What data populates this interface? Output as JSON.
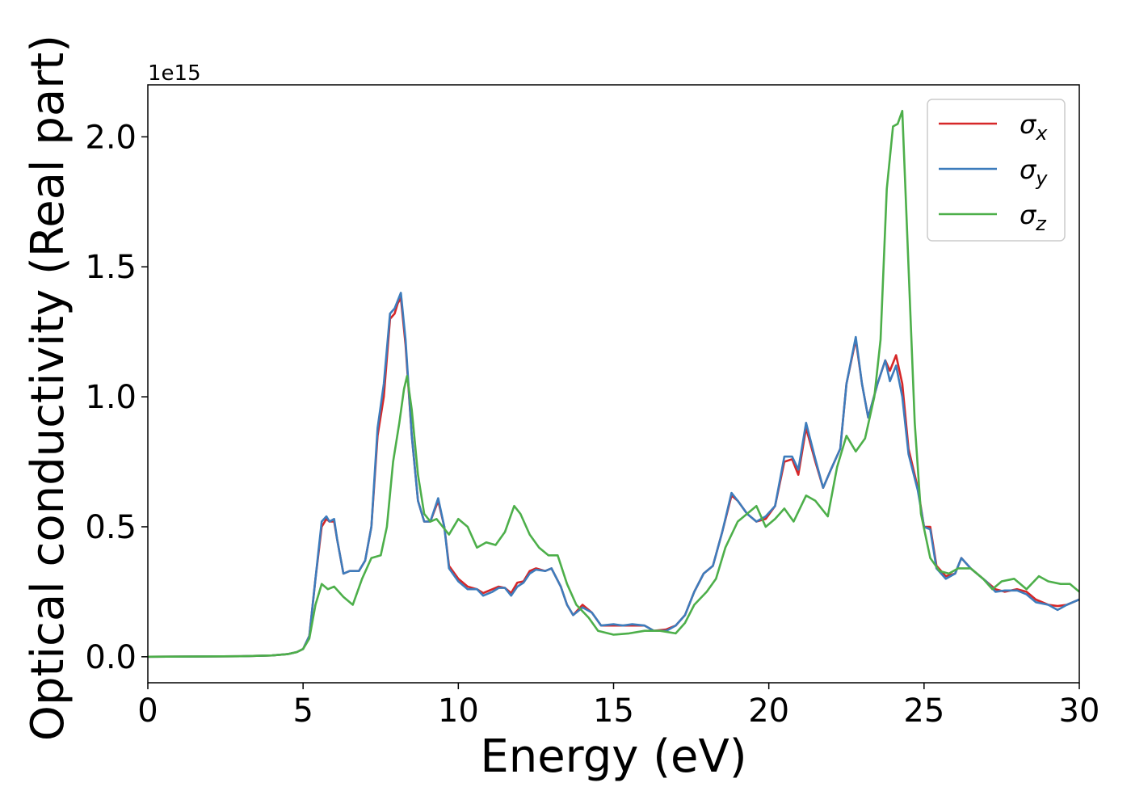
{
  "chart_data": {
    "type": "line",
    "title": "",
    "xlabel": "Energy (eV)",
    "ylabel": "Optical conductivity (Real part)",
    "y_offset_label": "1e15",
    "xlim": [
      0,
      30
    ],
    "ylim": [
      -0.1,
      2.2
    ],
    "x_ticks": [
      0,
      5,
      10,
      15,
      20,
      25,
      30
    ],
    "x_tick_labels": [
      "0",
      "5",
      "10",
      "15",
      "20",
      "25",
      "30"
    ],
    "y_ticks": [
      0.0,
      0.5,
      1.0,
      1.5,
      2.0
    ],
    "y_tick_labels": [
      "0.0",
      "0.5",
      "1.0",
      "1.5",
      "2.0"
    ],
    "grid": false,
    "legend_position": "top-right",
    "series": [
      {
        "name": "σx",
        "name_base": "σ",
        "name_sub": "x",
        "color": "#d62728",
        "points": [
          [
            0,
            0
          ],
          [
            3,
            0.002
          ],
          [
            4,
            0.005
          ],
          [
            4.5,
            0.01
          ],
          [
            4.8,
            0.018
          ],
          [
            5,
            0.03
          ],
          [
            5.2,
            0.08
          ],
          [
            5.4,
            0.3
          ],
          [
            5.6,
            0.5
          ],
          [
            5.75,
            0.53
          ],
          [
            5.85,
            0.52
          ],
          [
            6,
            0.52
          ],
          [
            6.1,
            0.45
          ],
          [
            6.3,
            0.32
          ],
          [
            6.5,
            0.33
          ],
          [
            6.8,
            0.33
          ],
          [
            7,
            0.37
          ],
          [
            7.2,
            0.5
          ],
          [
            7.4,
            0.85
          ],
          [
            7.6,
            1.0
          ],
          [
            7.8,
            1.3
          ],
          [
            7.95,
            1.32
          ],
          [
            8.05,
            1.36
          ],
          [
            8.15,
            1.38
          ],
          [
            8.3,
            1.2
          ],
          [
            8.5,
            0.85
          ],
          [
            8.7,
            0.6
          ],
          [
            8.9,
            0.52
          ],
          [
            9.1,
            0.52
          ],
          [
            9.35,
            0.6
          ],
          [
            9.55,
            0.5
          ],
          [
            9.7,
            0.35
          ],
          [
            10,
            0.3
          ],
          [
            10.3,
            0.27
          ],
          [
            10.6,
            0.26
          ],
          [
            10.8,
            0.245
          ],
          [
            11.1,
            0.26
          ],
          [
            11.3,
            0.27
          ],
          [
            11.5,
            0.265
          ],
          [
            11.7,
            0.245
          ],
          [
            11.9,
            0.285
          ],
          [
            12.1,
            0.29
          ],
          [
            12.3,
            0.33
          ],
          [
            12.5,
            0.34
          ],
          [
            12.8,
            0.33
          ],
          [
            13,
            0.34
          ],
          [
            13.3,
            0.27
          ],
          [
            13.5,
            0.2
          ],
          [
            13.7,
            0.16
          ],
          [
            14,
            0.2
          ],
          [
            14.3,
            0.17
          ],
          [
            14.6,
            0.12
          ],
          [
            15,
            0.12
          ],
          [
            15.3,
            0.12
          ],
          [
            15.6,
            0.12
          ],
          [
            16,
            0.12
          ],
          [
            16.3,
            0.1
          ],
          [
            16.7,
            0.105
          ],
          [
            17,
            0.12
          ],
          [
            17.3,
            0.16
          ],
          [
            17.6,
            0.25
          ],
          [
            17.9,
            0.32
          ],
          [
            18.2,
            0.35
          ],
          [
            18.5,
            0.48
          ],
          [
            18.8,
            0.62
          ],
          [
            19,
            0.6
          ],
          [
            19.3,
            0.55
          ],
          [
            19.6,
            0.52
          ],
          [
            19.9,
            0.53
          ],
          [
            20.2,
            0.58
          ],
          [
            20.5,
            0.75
          ],
          [
            20.75,
            0.76
          ],
          [
            20.95,
            0.7
          ],
          [
            21.2,
            0.88
          ],
          [
            21.5,
            0.75
          ],
          [
            21.75,
            0.65
          ],
          [
            22,
            0.72
          ],
          [
            22.3,
            0.8
          ],
          [
            22.5,
            1.05
          ],
          [
            22.8,
            1.22
          ],
          [
            23,
            1.05
          ],
          [
            23.2,
            0.92
          ],
          [
            23.5,
            1.05
          ],
          [
            23.75,
            1.14
          ],
          [
            23.9,
            1.1
          ],
          [
            24.1,
            1.16
          ],
          [
            24.3,
            1.05
          ],
          [
            24.5,
            0.8
          ],
          [
            24.8,
            0.65
          ],
          [
            25,
            0.5
          ],
          [
            25.2,
            0.5
          ],
          [
            25.4,
            0.35
          ],
          [
            25.7,
            0.31
          ],
          [
            26,
            0.32
          ],
          [
            26.2,
            0.38
          ],
          [
            26.5,
            0.34
          ],
          [
            27,
            0.29
          ],
          [
            27.3,
            0.26
          ],
          [
            27.6,
            0.25
          ],
          [
            28,
            0.26
          ],
          [
            28.3,
            0.25
          ],
          [
            28.6,
            0.22
          ],
          [
            29,
            0.2
          ],
          [
            29.3,
            0.195
          ],
          [
            29.6,
            0.2
          ],
          [
            30,
            0.22
          ]
        ]
      },
      {
        "name": "σy",
        "name_base": "σ",
        "name_sub": "y",
        "color": "#3d7cbc",
        "points": [
          [
            0,
            0
          ],
          [
            3,
            0.002
          ],
          [
            4,
            0.005
          ],
          [
            4.5,
            0.01
          ],
          [
            4.8,
            0.018
          ],
          [
            5,
            0.03
          ],
          [
            5.2,
            0.08
          ],
          [
            5.4,
            0.3
          ],
          [
            5.6,
            0.52
          ],
          [
            5.75,
            0.54
          ],
          [
            5.85,
            0.52
          ],
          [
            6,
            0.53
          ],
          [
            6.1,
            0.45
          ],
          [
            6.3,
            0.32
          ],
          [
            6.5,
            0.33
          ],
          [
            6.8,
            0.33
          ],
          [
            7,
            0.37
          ],
          [
            7.2,
            0.5
          ],
          [
            7.4,
            0.88
          ],
          [
            7.6,
            1.05
          ],
          [
            7.8,
            1.32
          ],
          [
            7.95,
            1.34
          ],
          [
            8.05,
            1.37
          ],
          [
            8.15,
            1.4
          ],
          [
            8.3,
            1.22
          ],
          [
            8.5,
            0.85
          ],
          [
            8.7,
            0.6
          ],
          [
            8.9,
            0.52
          ],
          [
            9.1,
            0.52
          ],
          [
            9.35,
            0.61
          ],
          [
            9.55,
            0.5
          ],
          [
            9.7,
            0.34
          ],
          [
            10,
            0.29
          ],
          [
            10.3,
            0.26
          ],
          [
            10.6,
            0.26
          ],
          [
            10.8,
            0.235
          ],
          [
            11.1,
            0.25
          ],
          [
            11.3,
            0.265
          ],
          [
            11.5,
            0.265
          ],
          [
            11.7,
            0.235
          ],
          [
            11.9,
            0.27
          ],
          [
            12.1,
            0.285
          ],
          [
            12.3,
            0.32
          ],
          [
            12.5,
            0.335
          ],
          [
            12.8,
            0.33
          ],
          [
            13,
            0.34
          ],
          [
            13.3,
            0.27
          ],
          [
            13.5,
            0.2
          ],
          [
            13.7,
            0.16
          ],
          [
            14,
            0.19
          ],
          [
            14.3,
            0.17
          ],
          [
            14.6,
            0.12
          ],
          [
            15,
            0.125
          ],
          [
            15.3,
            0.12
          ],
          [
            15.6,
            0.125
          ],
          [
            16,
            0.12
          ],
          [
            16.3,
            0.1
          ],
          [
            16.7,
            0.1
          ],
          [
            17,
            0.12
          ],
          [
            17.3,
            0.16
          ],
          [
            17.6,
            0.25
          ],
          [
            17.9,
            0.32
          ],
          [
            18.2,
            0.35
          ],
          [
            18.5,
            0.48
          ],
          [
            18.8,
            0.63
          ],
          [
            19,
            0.6
          ],
          [
            19.3,
            0.55
          ],
          [
            19.6,
            0.52
          ],
          [
            19.9,
            0.54
          ],
          [
            20.2,
            0.58
          ],
          [
            20.5,
            0.77
          ],
          [
            20.75,
            0.77
          ],
          [
            20.95,
            0.72
          ],
          [
            21.2,
            0.9
          ],
          [
            21.5,
            0.76
          ],
          [
            21.75,
            0.65
          ],
          [
            22,
            0.72
          ],
          [
            22.3,
            0.8
          ],
          [
            22.5,
            1.05
          ],
          [
            22.8,
            1.23
          ],
          [
            23,
            1.05
          ],
          [
            23.2,
            0.92
          ],
          [
            23.5,
            1.05
          ],
          [
            23.75,
            1.14
          ],
          [
            23.9,
            1.06
          ],
          [
            24.1,
            1.12
          ],
          [
            24.3,
            1.0
          ],
          [
            24.5,
            0.78
          ],
          [
            24.8,
            0.64
          ],
          [
            25,
            0.5
          ],
          [
            25.2,
            0.49
          ],
          [
            25.4,
            0.34
          ],
          [
            25.7,
            0.3
          ],
          [
            26,
            0.32
          ],
          [
            26.2,
            0.38
          ],
          [
            26.5,
            0.34
          ],
          [
            27,
            0.29
          ],
          [
            27.3,
            0.25
          ],
          [
            27.6,
            0.255
          ],
          [
            28,
            0.255
          ],
          [
            28.3,
            0.24
          ],
          [
            28.6,
            0.21
          ],
          [
            29,
            0.2
          ],
          [
            29.3,
            0.18
          ],
          [
            29.6,
            0.2
          ],
          [
            30,
            0.22
          ]
        ]
      },
      {
        "name": "σz",
        "name_base": "σ",
        "name_sub": "z",
        "color": "#4daf4a",
        "points": [
          [
            0,
            0
          ],
          [
            3,
            0.002
          ],
          [
            4,
            0.005
          ],
          [
            4.5,
            0.01
          ],
          [
            4.8,
            0.018
          ],
          [
            5,
            0.03
          ],
          [
            5.2,
            0.07
          ],
          [
            5.4,
            0.2
          ],
          [
            5.6,
            0.28
          ],
          [
            5.8,
            0.26
          ],
          [
            6,
            0.27
          ],
          [
            6.3,
            0.23
          ],
          [
            6.6,
            0.2
          ],
          [
            6.9,
            0.3
          ],
          [
            7.2,
            0.38
          ],
          [
            7.5,
            0.39
          ],
          [
            7.7,
            0.5
          ],
          [
            7.9,
            0.75
          ],
          [
            8.1,
            0.9
          ],
          [
            8.25,
            1.03
          ],
          [
            8.35,
            1.08
          ],
          [
            8.5,
            0.95
          ],
          [
            8.7,
            0.7
          ],
          [
            8.9,
            0.55
          ],
          [
            9.1,
            0.52
          ],
          [
            9.3,
            0.53
          ],
          [
            9.5,
            0.5
          ],
          [
            9.7,
            0.47
          ],
          [
            10,
            0.53
          ],
          [
            10.3,
            0.5
          ],
          [
            10.6,
            0.42
          ],
          [
            10.9,
            0.44
          ],
          [
            11.2,
            0.43
          ],
          [
            11.5,
            0.48
          ],
          [
            11.8,
            0.58
          ],
          [
            12,
            0.55
          ],
          [
            12.3,
            0.47
          ],
          [
            12.6,
            0.42
          ],
          [
            12.9,
            0.39
          ],
          [
            13.2,
            0.39
          ],
          [
            13.5,
            0.28
          ],
          [
            13.8,
            0.2
          ],
          [
            14.2,
            0.15
          ],
          [
            14.5,
            0.1
          ],
          [
            15,
            0.085
          ],
          [
            15.5,
            0.09
          ],
          [
            16,
            0.1
          ],
          [
            16.5,
            0.1
          ],
          [
            17,
            0.09
          ],
          [
            17.3,
            0.13
          ],
          [
            17.6,
            0.2
          ],
          [
            18,
            0.25
          ],
          [
            18.3,
            0.3
          ],
          [
            18.6,
            0.42
          ],
          [
            19,
            0.52
          ],
          [
            19.3,
            0.55
          ],
          [
            19.6,
            0.58
          ],
          [
            19.9,
            0.5
          ],
          [
            20.2,
            0.53
          ],
          [
            20.5,
            0.57
          ],
          [
            20.8,
            0.52
          ],
          [
            21.2,
            0.62
          ],
          [
            21.5,
            0.6
          ],
          [
            21.9,
            0.54
          ],
          [
            22.2,
            0.73
          ],
          [
            22.5,
            0.85
          ],
          [
            22.8,
            0.79
          ],
          [
            23.1,
            0.84
          ],
          [
            23.4,
            1.0
          ],
          [
            23.6,
            1.22
          ],
          [
            23.8,
            1.8
          ],
          [
            24,
            2.04
          ],
          [
            24.15,
            2.05
          ],
          [
            24.3,
            2.1
          ],
          [
            24.5,
            1.5
          ],
          [
            24.7,
            0.9
          ],
          [
            24.9,
            0.55
          ],
          [
            25.2,
            0.38
          ],
          [
            25.5,
            0.33
          ],
          [
            25.8,
            0.32
          ],
          [
            26.1,
            0.34
          ],
          [
            26.5,
            0.34
          ],
          [
            26.9,
            0.3
          ],
          [
            27.2,
            0.26
          ],
          [
            27.5,
            0.29
          ],
          [
            27.9,
            0.3
          ],
          [
            28.3,
            0.26
          ],
          [
            28.7,
            0.31
          ],
          [
            29,
            0.29
          ],
          [
            29.4,
            0.28
          ],
          [
            29.7,
            0.28
          ],
          [
            30,
            0.25
          ]
        ]
      }
    ]
  }
}
